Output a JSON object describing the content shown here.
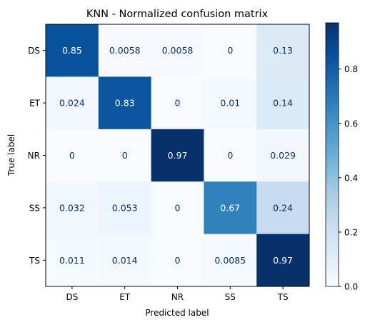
{
  "chart_data": {
    "type": "heatmap",
    "title": "KNN - Normalized confusion matrix",
    "xlabel": "Predicted label",
    "ylabel": "True label",
    "x_categories": [
      "DS",
      "ET",
      "NR",
      "SS",
      "TS"
    ],
    "y_categories": [
      "DS",
      "ET",
      "NR",
      "SS",
      "TS"
    ],
    "values": [
      [
        0.85,
        0.0058,
        0.0058,
        0,
        0.13
      ],
      [
        0.024,
        0.83,
        0,
        0.01,
        0.14
      ],
      [
        0,
        0,
        0.97,
        0,
        0.029
      ],
      [
        0.032,
        0.053,
        0,
        0.67,
        0.24
      ],
      [
        0.011,
        0.014,
        0,
        0.0085,
        0.97
      ]
    ],
    "value_labels": [
      [
        "0.85",
        "0.0058",
        "0.0058",
        "0",
        "0.13"
      ],
      [
        "0.024",
        "0.83",
        "0",
        "0.01",
        "0.14"
      ],
      [
        "0",
        "0",
        "0.97",
        "0",
        "0.029"
      ],
      [
        "0.032",
        "0.053",
        "0",
        "0.67",
        "0.24"
      ],
      [
        "0.011",
        "0.014",
        "0",
        "0.0085",
        "0.97"
      ]
    ],
    "colormap": "Blues",
    "colorbar": {
      "range": [
        0,
        0.97
      ],
      "ticks": [
        0.0,
        0.2,
        0.4,
        0.6,
        0.8
      ],
      "tick_labels": [
        "0.0",
        "0.2",
        "0.4",
        "0.6",
        "0.8"
      ]
    },
    "grid": false,
    "text_colors": {
      "dark": "#08306b",
      "light": "#ffffff"
    }
  }
}
